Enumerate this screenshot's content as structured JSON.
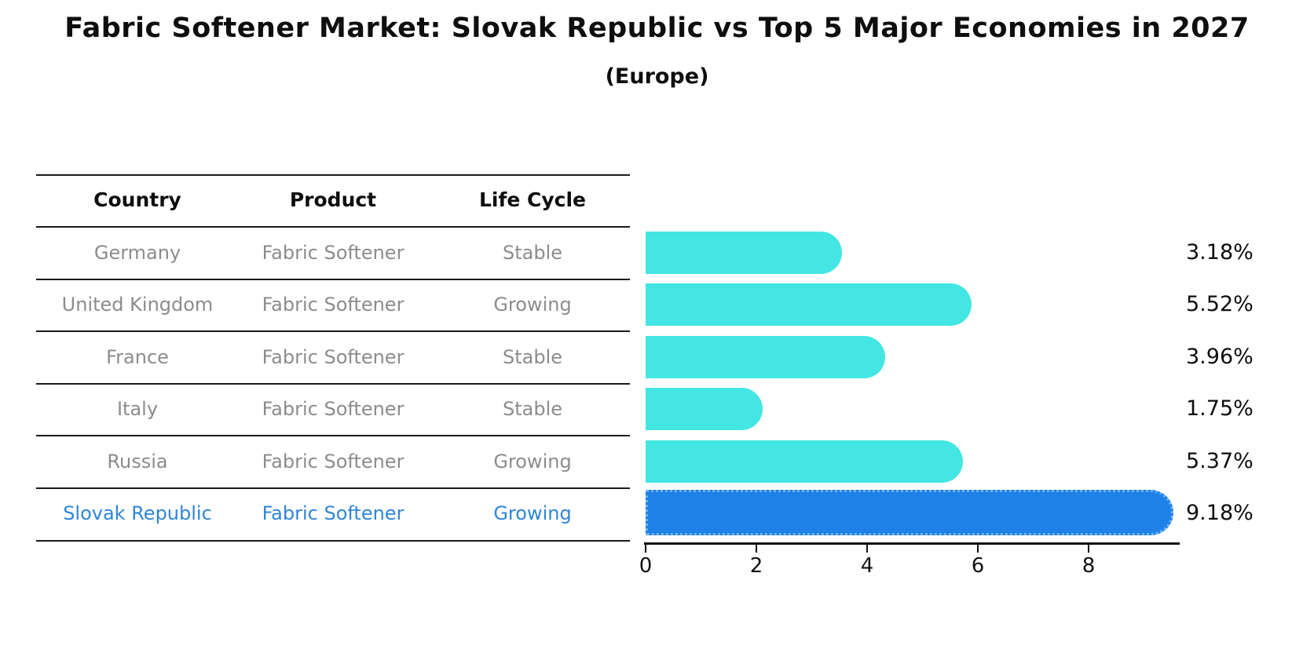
{
  "title": "Fabric Softener Market: Slovak Republic vs Top 5 Major Economies in 2027",
  "subtitle": "(Europe)",
  "table": {
    "headers": [
      "Country",
      "Product",
      "Life Cycle"
    ],
    "rows": [
      {
        "country": "Germany",
        "product": "Fabric Softener",
        "life_cycle": "Stable",
        "highlighted": false
      },
      {
        "country": "United Kingdom",
        "product": "Fabric Softener",
        "life_cycle": "Growing",
        "highlighted": false
      },
      {
        "country": "France",
        "product": "Fabric Softener",
        "life_cycle": "Stable",
        "highlighted": false
      },
      {
        "country": "Italy",
        "product": "Fabric Softener",
        "life_cycle": "Stable",
        "highlighted": false
      },
      {
        "country": "Russia",
        "product": "Fabric Softener",
        "life_cycle": "Growing",
        "highlighted": false
      },
      {
        "country": "Slovak Republic",
        "product": "Fabric Softener",
        "life_cycle": "Growing",
        "highlighted": true
      }
    ]
  },
  "chart_data": {
    "type": "bar",
    "orientation": "horizontal",
    "title": "Fabric Softener Market: Slovak Republic vs Top 5 Major Economies in 2027 (Europe)",
    "categories": [
      "Germany",
      "United Kingdom",
      "France",
      "Italy",
      "Russia",
      "Slovak Republic"
    ],
    "values": [
      3.18,
      5.52,
      3.96,
      1.75,
      5.37,
      9.18
    ],
    "value_labels": [
      "3.18%",
      "5.52%",
      "3.96%",
      "1.75%",
      "5.37%",
      "9.18%"
    ],
    "x_ticks": [
      "0",
      "2",
      "4",
      "6",
      "8"
    ],
    "xlim": [
      0,
      9.6
    ],
    "grid": false,
    "legend": false,
    "highlight_index": 5,
    "bar_color": "#43e6e2",
    "highlight_bar_color": "#1f80e8",
    "highlight_text_color": "#2e86d9",
    "row_text_color": "#8c8c8c"
  }
}
